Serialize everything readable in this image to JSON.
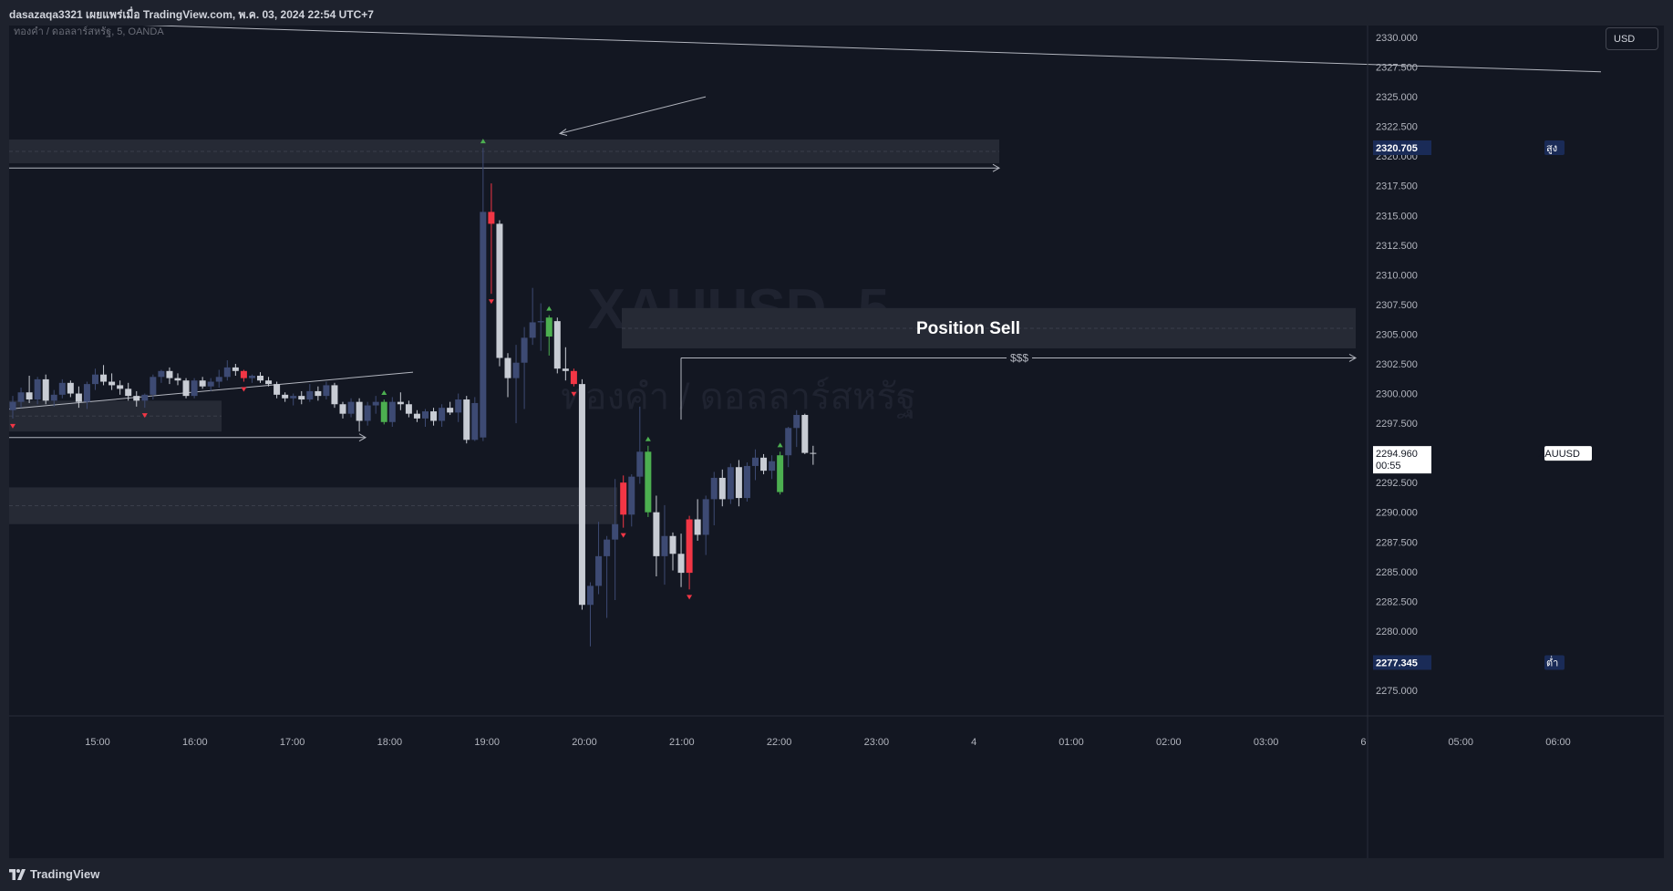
{
  "header": {
    "publish_line": "dasazaqa3321 เผยแพร่เมื่อ TradingView.com, พ.ค. 03, 2024 22:54 UTC+7"
  },
  "chart": {
    "legend": "ทองคำ / ดอลลาร์สหรัฐ, 5, OANDA",
    "watermark_symbol": "XAUUSD, 5",
    "watermark_desc": "ทองคำ / ดอลลาร์สหรัฐ",
    "currency_button": "USD",
    "annotation_position": "Position Sell",
    "annotation_liquidity": "$$$"
  },
  "price_scale": {
    "labels": [
      "2330.000",
      "2327.500",
      "2325.000",
      "2322.500",
      "2320.000",
      "2317.500",
      "2315.000",
      "2312.500",
      "2310.000",
      "2307.500",
      "2305.000",
      "2302.500",
      "2300.000",
      "2297.500",
      "2295.000",
      "2292.500",
      "2290.000",
      "2287.500",
      "2285.000",
      "2282.500",
      "2280.000",
      "2277.500",
      "2275.000"
    ],
    "high_tag": "สูง",
    "high_value": "2320.705",
    "low_tag": "ต่ำ",
    "low_value": "2277.345",
    "symbol_tag": "XAUUSD",
    "last_price": "2294.960",
    "countdown": "00:55"
  },
  "time_axis": {
    "labels": [
      "15:00",
      "16:00",
      "17:00",
      "18:00",
      "19:00",
      "20:00",
      "21:00",
      "22:00",
      "23:00",
      "4",
      "01:00",
      "02:00",
      "03:00",
      "6",
      "05:00",
      "06:00"
    ]
  },
  "footer": {
    "brand": "TradingView"
  },
  "colors": {
    "background": "#131722",
    "frame": "#1e222d",
    "bull_body": "#3d4a73",
    "bear_body": "#c8ccd4",
    "marker_up": "#4caf50",
    "marker_down": "#f23645",
    "zone": "#262a35",
    "line": "#b2b5be",
    "tag_bg": "#1a2b57"
  },
  "chart_data": {
    "type": "candlestick",
    "symbol": "XAUUSD",
    "timeframe": "5",
    "broker": "OANDA",
    "y_range": [
      2273,
      2331
    ],
    "last_price": 2294.96,
    "session_high": 2320.705,
    "session_low": 2277.345,
    "candles": [
      {
        "o": 2298.6,
        "h": 2299.8,
        "l": 2297.9,
        "c": 2299.3
      },
      {
        "o": 2299.3,
        "h": 2300.5,
        "l": 2298.8,
        "c": 2300.1
      },
      {
        "o": 2300.1,
        "h": 2301.5,
        "l": 2299.2,
        "c": 2299.5
      },
      {
        "o": 2299.5,
        "h": 2301.4,
        "l": 2299.1,
        "c": 2301.2
      },
      {
        "o": 2301.2,
        "h": 2301.6,
        "l": 2299.1,
        "c": 2299.4
      },
      {
        "o": 2299.4,
        "h": 2300.3,
        "l": 2298.9,
        "c": 2299.9
      },
      {
        "o": 2299.9,
        "h": 2301.2,
        "l": 2299.6,
        "c": 2300.9
      },
      {
        "o": 2300.9,
        "h": 2301.1,
        "l": 2299.7,
        "c": 2300.0
      },
      {
        "o": 2300.0,
        "h": 2300.6,
        "l": 2298.8,
        "c": 2299.3
      },
      {
        "o": 2299.3,
        "h": 2301.0,
        "l": 2298.7,
        "c": 2300.8
      },
      {
        "o": 2300.8,
        "h": 2302.1,
        "l": 2300.3,
        "c": 2301.6
      },
      {
        "o": 2301.6,
        "h": 2302.4,
        "l": 2300.7,
        "c": 2301.0
      },
      {
        "o": 2301.0,
        "h": 2301.7,
        "l": 2300.3,
        "c": 2300.7
      },
      {
        "o": 2300.7,
        "h": 2301.1,
        "l": 2299.9,
        "c": 2300.4
      },
      {
        "o": 2300.4,
        "h": 2300.9,
        "l": 2299.4,
        "c": 2299.8
      },
      {
        "o": 2299.8,
        "h": 2300.2,
        "l": 2298.9,
        "c": 2299.4
      },
      {
        "o": 2299.4,
        "h": 2300.0,
        "l": 2298.8,
        "c": 2299.9
      },
      {
        "o": 2299.9,
        "h": 2301.6,
        "l": 2299.5,
        "c": 2301.4
      },
      {
        "o": 2301.4,
        "h": 2302.0,
        "l": 2300.9,
        "c": 2301.9
      },
      {
        "o": 2301.9,
        "h": 2302.2,
        "l": 2300.8,
        "c": 2301.3
      },
      {
        "o": 2301.3,
        "h": 2301.7,
        "l": 2300.7,
        "c": 2301.1
      },
      {
        "o": 2301.1,
        "h": 2301.3,
        "l": 2299.6,
        "c": 2299.8
      },
      {
        "o": 2299.8,
        "h": 2301.3,
        "l": 2299.6,
        "c": 2301.1
      },
      {
        "o": 2301.1,
        "h": 2301.4,
        "l": 2300.4,
        "c": 2300.6
      },
      {
        "o": 2300.6,
        "h": 2301.3,
        "l": 2300.2,
        "c": 2301.0
      },
      {
        "o": 2301.0,
        "h": 2302.0,
        "l": 2300.5,
        "c": 2301.4
      },
      {
        "o": 2301.4,
        "h": 2302.8,
        "l": 2301.1,
        "c": 2302.2
      },
      {
        "o": 2302.2,
        "h": 2302.5,
        "l": 2301.5,
        "c": 2301.9
      },
      {
        "o": 2301.9,
        "h": 2302.0,
        "l": 2301.0,
        "c": 2301.3
      },
      {
        "o": 2301.3,
        "h": 2301.6,
        "l": 2300.9,
        "c": 2301.5
      },
      {
        "o": 2301.5,
        "h": 2301.8,
        "l": 2300.9,
        "c": 2301.1
      },
      {
        "o": 2301.1,
        "h": 2301.4,
        "l": 2300.6,
        "c": 2300.8
      },
      {
        "o": 2300.8,
        "h": 2301.0,
        "l": 2299.6,
        "c": 2299.9
      },
      {
        "o": 2299.9,
        "h": 2300.1,
        "l": 2299.3,
        "c": 2299.6
      },
      {
        "o": 2299.6,
        "h": 2300.0,
        "l": 2299.0,
        "c": 2299.8
      },
      {
        "o": 2299.8,
        "h": 2300.2,
        "l": 2299.1,
        "c": 2299.5
      },
      {
        "o": 2299.5,
        "h": 2300.8,
        "l": 2299.3,
        "c": 2300.2
      },
      {
        "o": 2300.2,
        "h": 2300.6,
        "l": 2299.4,
        "c": 2299.8
      },
      {
        "o": 2299.8,
        "h": 2301.0,
        "l": 2299.5,
        "c": 2300.7
      },
      {
        "o": 2300.7,
        "h": 2300.9,
        "l": 2298.8,
        "c": 2299.1
      },
      {
        "o": 2299.1,
        "h": 2299.3,
        "l": 2297.9,
        "c": 2298.3
      },
      {
        "o": 2298.3,
        "h": 2299.6,
        "l": 2298.0,
        "c": 2299.3
      },
      {
        "o": 2299.3,
        "h": 2299.6,
        "l": 2296.8,
        "c": 2297.7
      },
      {
        "o": 2297.7,
        "h": 2299.3,
        "l": 2297.3,
        "c": 2299.0
      },
      {
        "o": 2299.0,
        "h": 2299.8,
        "l": 2298.3,
        "c": 2299.3
      },
      {
        "o": 2299.3,
        "h": 2299.5,
        "l": 2297.4,
        "c": 2297.6
      },
      {
        "o": 2297.6,
        "h": 2299.7,
        "l": 2297.2,
        "c": 2299.3
      },
      {
        "o": 2299.3,
        "h": 2300.1,
        "l": 2298.6,
        "c": 2299.1
      },
      {
        "o": 2299.1,
        "h": 2299.4,
        "l": 2298.0,
        "c": 2298.3
      },
      {
        "o": 2298.3,
        "h": 2298.6,
        "l": 2297.6,
        "c": 2297.9
      },
      {
        "o": 2297.9,
        "h": 2298.7,
        "l": 2297.2,
        "c": 2298.5
      },
      {
        "o": 2298.5,
        "h": 2298.8,
        "l": 2297.3,
        "c": 2297.7
      },
      {
        "o": 2297.7,
        "h": 2299.1,
        "l": 2297.2,
        "c": 2298.8
      },
      {
        "o": 2298.8,
        "h": 2299.3,
        "l": 2298.2,
        "c": 2298.4
      },
      {
        "o": 2298.4,
        "h": 2300.0,
        "l": 2297.6,
        "c": 2299.5
      },
      {
        "o": 2299.5,
        "h": 2299.8,
        "l": 2295.8,
        "c": 2296.1
      },
      {
        "o": 2296.1,
        "h": 2299.7,
        "l": 2296.0,
        "c": 2299.2
      },
      {
        "o": 2296.3,
        "h": 2320.7,
        "l": 2296.0,
        "c": 2315.3
      },
      {
        "o": 2315.3,
        "h": 2317.7,
        "l": 2308.4,
        "c": 2314.3
      },
      {
        "o": 2314.3,
        "h": 2314.6,
        "l": 2302.3,
        "c": 2303.0
      },
      {
        "o": 2303.0,
        "h": 2303.4,
        "l": 2299.7,
        "c": 2301.3
      },
      {
        "o": 2301.3,
        "h": 2304.1,
        "l": 2297.5,
        "c": 2302.6
      },
      {
        "o": 2302.6,
        "h": 2305.6,
        "l": 2298.7,
        "c": 2304.7
      },
      {
        "o": 2304.7,
        "h": 2308.9,
        "l": 2304.1,
        "c": 2306.0
      },
      {
        "o": 2306.0,
        "h": 2307.6,
        "l": 2303.6,
        "c": 2306.1
      },
      {
        "o": 2306.4,
        "h": 2306.6,
        "l": 2303.2,
        "c": 2304.8
      },
      {
        "o": 2306.1,
        "h": 2306.4,
        "l": 2301.7,
        "c": 2302.1
      },
      {
        "o": 2302.1,
        "h": 2303.9,
        "l": 2301.1,
        "c": 2301.9
      },
      {
        "o": 2301.9,
        "h": 2302.1,
        "l": 2300.6,
        "c": 2300.8
      },
      {
        "o": 2300.8,
        "h": 2301.2,
        "l": 2281.8,
        "c": 2282.2
      },
      {
        "o": 2282.2,
        "h": 2284.1,
        "l": 2278.7,
        "c": 2283.8
      },
      {
        "o": 2283.8,
        "h": 2289.2,
        "l": 2283.1,
        "c": 2286.3
      },
      {
        "o": 2286.3,
        "h": 2288.0,
        "l": 2281.1,
        "c": 2287.7
      },
      {
        "o": 2287.7,
        "h": 2292.8,
        "l": 2282.6,
        "c": 2289.0
      },
      {
        "o": 2292.5,
        "h": 2293.1,
        "l": 2288.7,
        "c": 2289.8
      },
      {
        "o": 2289.8,
        "h": 2293.2,
        "l": 2288.8,
        "c": 2293.0
      },
      {
        "o": 2293.0,
        "h": 2298.9,
        "l": 2292.4,
        "c": 2295.1
      },
      {
        "o": 2295.1,
        "h": 2295.6,
        "l": 2289.6,
        "c": 2290.0
      },
      {
        "o": 2290.0,
        "h": 2291.4,
        "l": 2284.6,
        "c": 2286.3
      },
      {
        "o": 2286.3,
        "h": 2290.6,
        "l": 2283.9,
        "c": 2288.0
      },
      {
        "o": 2288.0,
        "h": 2288.3,
        "l": 2285.1,
        "c": 2286.5
      },
      {
        "o": 2286.5,
        "h": 2288.2,
        "l": 2283.7,
        "c": 2284.9
      },
      {
        "o": 2284.9,
        "h": 2289.7,
        "l": 2283.5,
        "c": 2289.4
      },
      {
        "o": 2289.4,
        "h": 2291.1,
        "l": 2287.6,
        "c": 2288.1
      },
      {
        "o": 2288.1,
        "h": 2291.4,
        "l": 2286.4,
        "c": 2291.1
      },
      {
        "o": 2291.1,
        "h": 2293.4,
        "l": 2288.9,
        "c": 2292.9
      },
      {
        "o": 2292.9,
        "h": 2293.6,
        "l": 2290.5,
        "c": 2291.1
      },
      {
        "o": 2291.1,
        "h": 2294.1,
        "l": 2290.7,
        "c": 2293.8
      },
      {
        "o": 2293.8,
        "h": 2294.4,
        "l": 2290.5,
        "c": 2291.2
      },
      {
        "o": 2291.2,
        "h": 2294.2,
        "l": 2290.9,
        "c": 2293.9
      },
      {
        "o": 2293.9,
        "h": 2295.3,
        "l": 2292.7,
        "c": 2294.6
      },
      {
        "o": 2294.6,
        "h": 2294.9,
        "l": 2293.2,
        "c": 2293.5
      },
      {
        "o": 2293.5,
        "h": 2294.8,
        "l": 2292.8,
        "c": 2294.3
      },
      {
        "o": 2291.7,
        "h": 2295.1,
        "l": 2291.5,
        "c": 2294.8
      },
      {
        "o": 2294.8,
        "h": 2297.2,
        "l": 2293.8,
        "c": 2297.1
      },
      {
        "o": 2297.1,
        "h": 2298.6,
        "l": 2295.5,
        "c": 2298.2
      },
      {
        "o": 2298.2,
        "h": 2298.3,
        "l": 2294.9,
        "c": 2295.0
      },
      {
        "o": 2295.0,
        "h": 2295.6,
        "l": 2294.0,
        "c": 2294.96
      }
    ],
    "markers": [
      {
        "i": 0,
        "type": "down"
      },
      {
        "i": 16,
        "type": "down"
      },
      {
        "i": 28,
        "type": "down"
      },
      {
        "i": 45,
        "type": "up"
      },
      {
        "i": 57,
        "type": "up"
      },
      {
        "i": 58,
        "type": "down"
      },
      {
        "i": 65,
        "type": "up"
      },
      {
        "i": 68,
        "type": "down"
      },
      {
        "i": 74,
        "type": "down"
      },
      {
        "i": 77,
        "type": "up"
      },
      {
        "i": 82,
        "type": "down"
      },
      {
        "i": 93,
        "type": "up"
      }
    ],
    "highlight_candles": [
      {
        "i": 28,
        "color": "red"
      },
      {
        "i": 58,
        "color": "red"
      },
      {
        "i": 65,
        "color": "green"
      },
      {
        "i": 68,
        "color": "red"
      },
      {
        "i": 74,
        "color": "red"
      },
      {
        "i": 77,
        "color": "green"
      },
      {
        "i": 82,
        "color": "red"
      },
      {
        "i": 45,
        "color": "green"
      },
      {
        "i": 93,
        "color": "green"
      }
    ],
    "zones": [
      {
        "label": "supply_top",
        "from": 2319.4,
        "to": 2321.4
      },
      {
        "label": "position_sell",
        "from": 2303.8,
        "to": 2307.2
      },
      {
        "label": "demand_left",
        "from": 2296.8,
        "to": 2299.4
      },
      {
        "label": "demand_low",
        "from": 2289.0,
        "to": 2292.1
      }
    ],
    "ray_levels": [
      2319.0,
      2296.3
    ],
    "liquidity_level": 2303.0,
    "trendline_top": {
      "from": 2331.4,
      "to": 2330.5
    },
    "trendline_rising": {
      "from": 2298.7,
      "to": 2301.8
    }
  }
}
